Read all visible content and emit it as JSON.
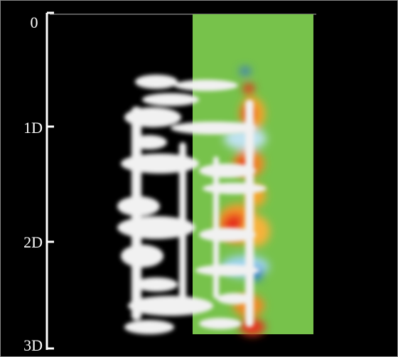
{
  "scale": {
    "labels": [
      "0",
      "1D",
      "2D",
      "3D"
    ]
  }
}
